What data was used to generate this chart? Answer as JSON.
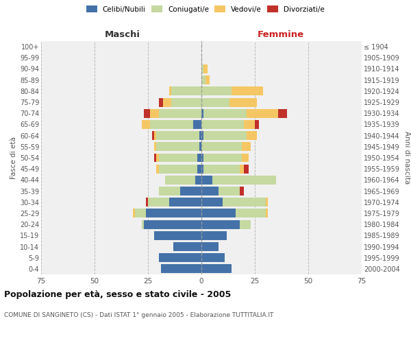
{
  "age_groups": [
    "0-4",
    "5-9",
    "10-14",
    "15-19",
    "20-24",
    "25-29",
    "30-34",
    "35-39",
    "40-44",
    "45-49",
    "50-54",
    "55-59",
    "60-64",
    "65-69",
    "70-74",
    "75-79",
    "80-84",
    "85-89",
    "90-94",
    "95-99",
    "100+"
  ],
  "birth_years": [
    "2000-2004",
    "1995-1999",
    "1990-1994",
    "1985-1989",
    "1980-1984",
    "1975-1979",
    "1970-1974",
    "1965-1969",
    "1960-1964",
    "1955-1959",
    "1950-1954",
    "1945-1949",
    "1940-1944",
    "1935-1939",
    "1930-1934",
    "1925-1929",
    "1920-1924",
    "1915-1919",
    "1910-1914",
    "1905-1909",
    "≤ 1904"
  ],
  "male": {
    "celibi": [
      19,
      20,
      13,
      22,
      27,
      26,
      15,
      10,
      3,
      2,
      2,
      1,
      1,
      4,
      0,
      0,
      0,
      0,
      0,
      0,
      0
    ],
    "coniugati": [
      0,
      0,
      0,
      0,
      1,
      5,
      10,
      10,
      14,
      18,
      18,
      20,
      20,
      20,
      20,
      14,
      14,
      0,
      0,
      0,
      0
    ],
    "vedovi": [
      0,
      0,
      0,
      0,
      0,
      1,
      0,
      0,
      0,
      1,
      1,
      1,
      1,
      4,
      4,
      4,
      1,
      0,
      0,
      0,
      0
    ],
    "divorziati": [
      0,
      0,
      0,
      0,
      0,
      0,
      1,
      0,
      0,
      0,
      1,
      0,
      1,
      0,
      3,
      2,
      0,
      0,
      0,
      0,
      0
    ]
  },
  "female": {
    "nubili": [
      14,
      11,
      8,
      12,
      18,
      16,
      10,
      8,
      5,
      1,
      1,
      0,
      1,
      0,
      1,
      0,
      0,
      0,
      0,
      0,
      0
    ],
    "coniugate": [
      0,
      0,
      0,
      0,
      5,
      14,
      20,
      10,
      30,
      17,
      18,
      19,
      20,
      20,
      20,
      13,
      14,
      2,
      1,
      0,
      0
    ],
    "vedove": [
      0,
      0,
      0,
      0,
      0,
      1,
      1,
      0,
      0,
      2,
      3,
      4,
      5,
      5,
      15,
      13,
      15,
      2,
      2,
      0,
      0
    ],
    "divorziate": [
      0,
      0,
      0,
      0,
      0,
      0,
      0,
      2,
      0,
      2,
      0,
      0,
      0,
      2,
      4,
      0,
      0,
      0,
      0,
      0,
      0
    ]
  },
  "colors": {
    "celibi_nubili": "#4472a8",
    "coniugati": "#c5d9a0",
    "vedovi": "#f5c764",
    "divorziati": "#c0312a"
  },
  "title": "Popolazione per età, sesso e stato civile - 2005",
  "subtitle": "COMUNE DI SANGINETO (CS) - Dati ISTAT 1° gennaio 2005 - Elaborazione TUTTITALIA.IT",
  "xlabel_left": "Maschi",
  "xlabel_right": "Femmine",
  "ylabel_left": "Fasce di età",
  "ylabel_right": "Anni di nascita",
  "xlim": 75,
  "bg_color": "#f0f0f0",
  "grid_color": "#bbbbbb"
}
